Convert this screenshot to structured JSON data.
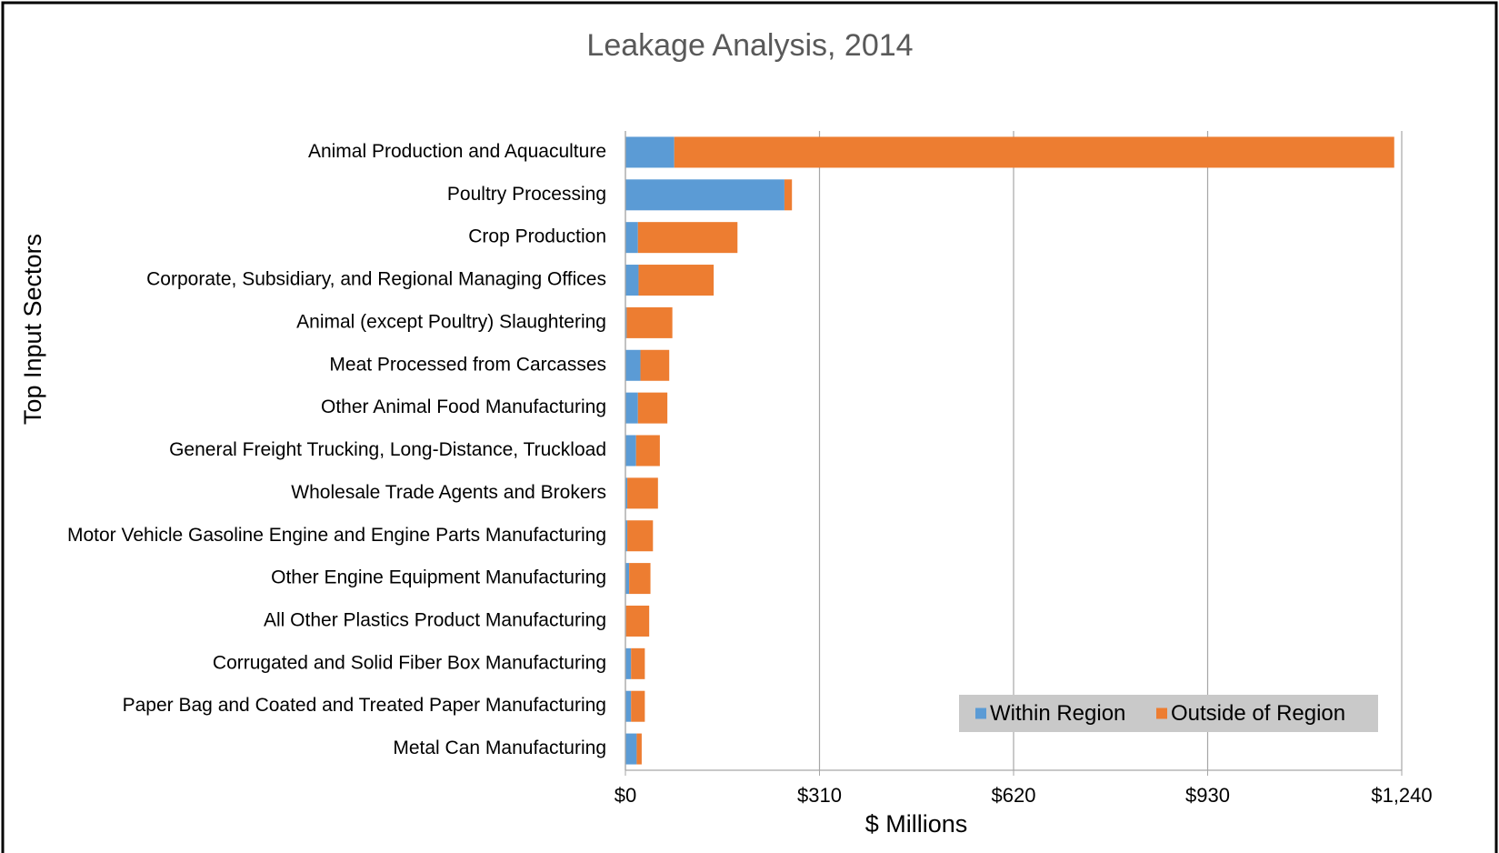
{
  "chart_data": {
    "type": "stacked_barh",
    "title": "Leakage Analysis, 2014",
    "xlabel": "$ Millions",
    "ylabel": "Top Input Sectors",
    "categories": [
      "Animal Production and Aquaculture",
      "Poultry Processing",
      "Crop Production",
      "Corporate, Subsidiary, and Regional Managing Offices",
      "Animal (except Poultry) Slaughtering",
      "Meat Processed from Carcasses",
      "Other Animal Food Manufacturing",
      "General Freight Trucking, Long-Distance, Truckload",
      "Wholesale Trade Agents and Brokers",
      "Motor Vehicle Gasoline Engine and Engine Parts Manufacturing",
      "Other Engine Equipment Manufacturing",
      "All Other Plastics Product Manufacturing",
      "Corrugated and Solid Fiber Box Manufacturing",
      "Paper Bag and Coated and Treated Paper Manufacturing",
      "Metal Can Manufacturing"
    ],
    "series": [
      {
        "name": "Within Region",
        "color": "#5b9bd5",
        "values": [
          78,
          254,
          20,
          21,
          2,
          24,
          20,
          17,
          3,
          3,
          6,
          1,
          9,
          9,
          18
        ]
      },
      {
        "name": "Outside of Region",
        "color": "#ed7d31",
        "values": [
          1150,
          12,
          159,
          120,
          73,
          46,
          47,
          38,
          49,
          41,
          34,
          37,
          22,
          22,
          8
        ]
      }
    ],
    "xlim": [
      0,
      1240
    ],
    "xticks": [
      {
        "value": 0,
        "label": "$0"
      },
      {
        "value": 310,
        "label": "$310"
      },
      {
        "value": 620,
        "label": "$620"
      },
      {
        "value": 930,
        "label": "$930"
      },
      {
        "value": 1240,
        "label": "$1,240"
      }
    ],
    "grid": true,
    "legend": "lower right"
  }
}
